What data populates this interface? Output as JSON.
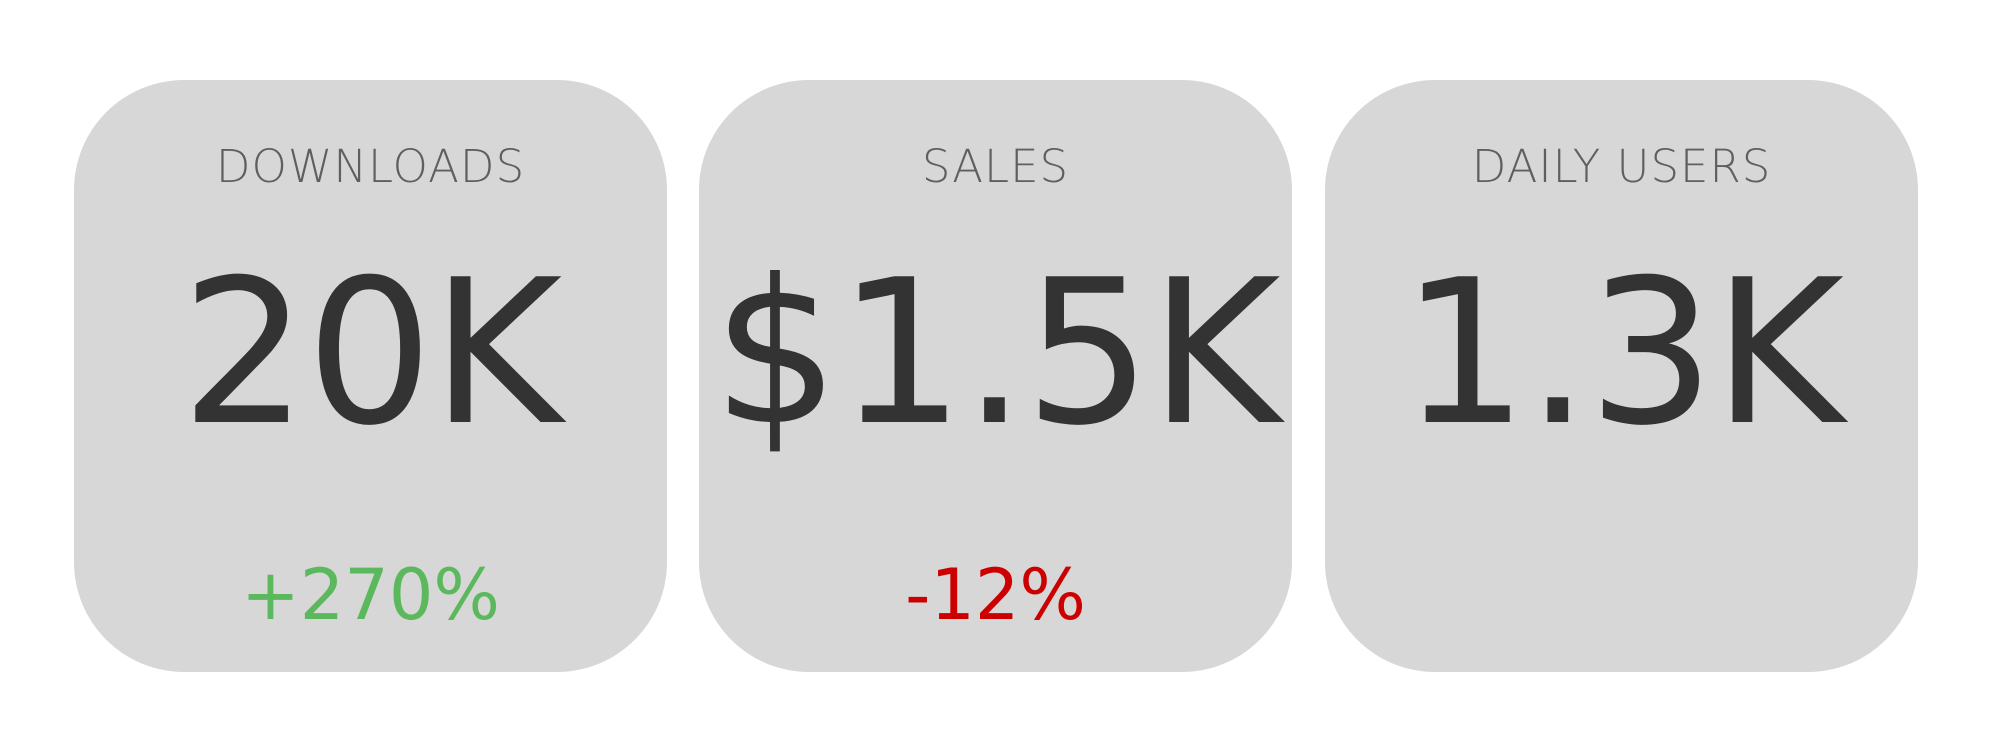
{
  "cards": [
    {
      "label": "DOWNLOADS",
      "value": "20K",
      "change": "+270%",
      "change_color": "#5cb85c"
    },
    {
      "label": "SALES",
      "value": "$1.5K",
      "change": "-12%",
      "change_color": "#cc0000"
    },
    {
      "label": "DAILY USERS",
      "value": "1.3K",
      "change": "",
      "change_color": ""
    }
  ],
  "colors": {
    "card_background": "#d7d7d7",
    "label_text": "#5f5f5f",
    "value_text": "#333333"
  }
}
